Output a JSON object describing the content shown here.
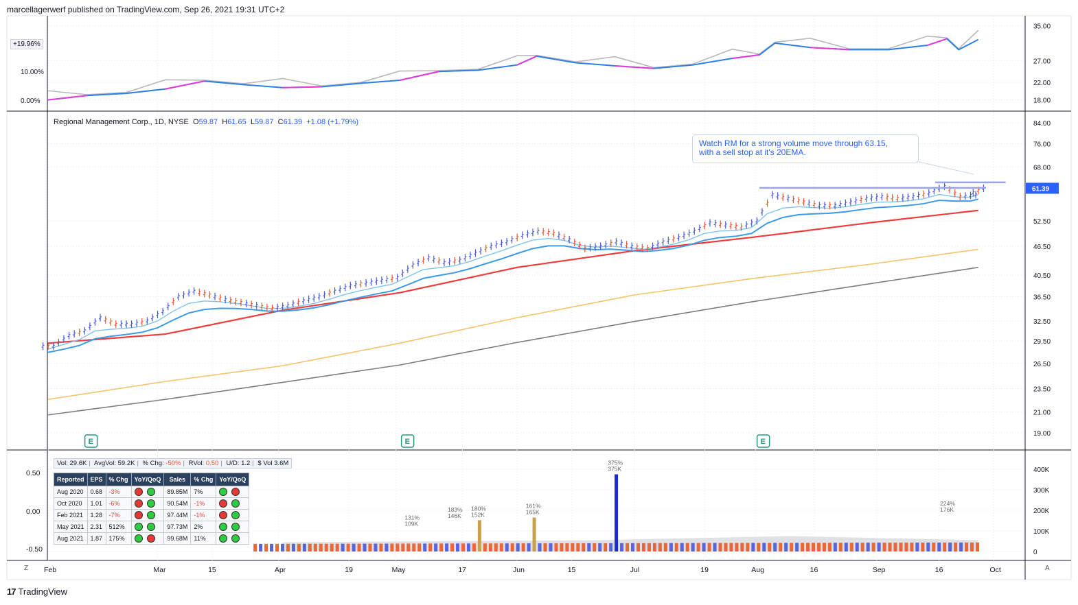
{
  "header": "marcellagerwerf published on TradingView.com, Sep 26, 2021 19:31 UTC+2",
  "footer": {
    "logo_mark": "17",
    "logo_text": "TradingView"
  },
  "buttons": {
    "z": "Z",
    "a": "A"
  },
  "symbol_legend": {
    "name": "Regional Management Corp., 1D, NYSE",
    "o_label": "O",
    "o": "59.87",
    "h_label": "H",
    "h": "61.65",
    "l_label": "L",
    "l": "59.87",
    "c_label": "C",
    "c": "61.39",
    "change": "+1.08 (+1.79%)"
  },
  "annotation": {
    "line1": "Watch RM for a strong volume move through 63.15,",
    "line2": "with a sell stop at it's 20EMA."
  },
  "colors": {
    "up": "#4a5bd8",
    "down": "#e8572f",
    "ema_fast": "#7ec3f0",
    "ema_mid": "#3b9be8",
    "ma50": "#ef3b3b",
    "ma150": "#f5c26b",
    "ma200": "#7d7d7d",
    "rs_line": "#2b7fe6",
    "rs_mag": "#e63bd8",
    "rs_gray": "#b8b8b8",
    "vol_highlight": "#c8a050",
    "vol_up": "#5b64d8",
    "vol_down": "#e8683a",
    "vol_big": "#1f28d6"
  },
  "rs_panel": {
    "badge": "+19.96%",
    "ticks": [
      "10.00%",
      "0.00%"
    ]
  },
  "vol_stats": {
    "vol_label": "Vol:",
    "vol": "29.6K",
    "avg_label": "AvgVol:",
    "avg": "59.2K",
    "chg_label": "% Chg:",
    "chg": "-50%",
    "rvol_label": "RVol:",
    "rvol": "0.50",
    "ud_label": "U/D:",
    "ud": "1.2",
    "dvol_label": "$ Vol",
    "dvol": "3.6M"
  },
  "eps_table": {
    "headers": [
      "Reported",
      "EPS",
      "% Chg",
      "YoY/QoQ",
      "Sales",
      "% Chg",
      "YoY/QoQ"
    ],
    "rows": [
      {
        "reported": "Aug 2020",
        "eps": "0.68",
        "eps_chg": "-3%",
        "eps_dots": [
          "red",
          "green"
        ],
        "sales": "89.85M",
        "sales_chg": "7%",
        "sales_dots": [
          "green",
          "red"
        ]
      },
      {
        "reported": "Oct 2020",
        "eps": "1.01",
        "eps_chg": "-6%",
        "eps_dots": [
          "red",
          "green"
        ],
        "sales": "90.54M",
        "sales_chg": "-1%",
        "sales_dots": [
          "red",
          "green"
        ]
      },
      {
        "reported": "Feb 2021",
        "eps": "1.28",
        "eps_chg": "-7%",
        "eps_dots": [
          "red",
          "green"
        ],
        "sales": "97.44M",
        "sales_chg": "-1%",
        "sales_dots": [
          "red",
          "green"
        ]
      },
      {
        "reported": "May 2021",
        "eps": "2.31",
        "eps_chg": "512%",
        "eps_dots": [
          "green",
          "green"
        ],
        "sales": "97.73M",
        "sales_chg": "2%",
        "sales_dots": [
          "green",
          "green"
        ]
      },
      {
        "reported": "Aug 2021",
        "eps": "1.87",
        "eps_chg": "175%",
        "eps_dots": [
          "green",
          "red"
        ],
        "sales": "99.68M",
        "sales_chg": "11%",
        "sales_dots": [
          "green",
          "green"
        ]
      }
    ]
  },
  "chart_data": {
    "type": "line",
    "x_ticks": [
      "Feb",
      "Mar",
      "15",
      "Apr",
      "19",
      "May",
      "17",
      "Jun",
      "15",
      "Jul",
      "19",
      "Aug",
      "16",
      "Sep",
      "16",
      "Oct"
    ],
    "x_tick_days": [
      0,
      28,
      42,
      59,
      77,
      89,
      106,
      120,
      134,
      150,
      168,
      181,
      196,
      212,
      228,
      242
    ],
    "price_axis": {
      "scale": "log",
      "ticks": [
        84.0,
        76.0,
        68.0,
        61.39,
        52.5,
        46.5,
        40.5,
        36.5,
        32.5,
        29.5,
        26.5,
        23.5,
        21.0,
        19.0
      ],
      "tick_labels": [
        "84.00",
        "76.00",
        "68.00",
        "61.39",
        "52.50",
        "46.50",
        "40.50",
        "36.50",
        "32.50",
        "29.50",
        "26.50",
        "23.50",
        "21.00",
        "19.00"
      ],
      "current_price": "61.39"
    },
    "rs_axis": {
      "ticks": [
        35.0,
        27.0,
        22.0,
        18.0
      ],
      "tick_labels": [
        "35.00",
        "27.00",
        "22.00",
        "18.00"
      ]
    },
    "volume_axis": {
      "ticks": [
        400000,
        300000,
        200000,
        100000,
        0
      ],
      "tick_labels": [
        "400K",
        "300K",
        "200K",
        "100K",
        "0"
      ]
    },
    "osc_axis": {
      "ticks": [
        0.5,
        0.0,
        -0.5
      ],
      "tick_labels": [
        "0.50",
        "0.00",
        "-0.50"
      ]
    },
    "earnings_marker": "E",
    "earnings_days": [
      11,
      92,
      183
    ],
    "price_series": [
      {
        "d": 0,
        "c": 28.8
      },
      {
        "d": 4,
        "c": 30.3
      },
      {
        "d": 8,
        "c": 31.0
      },
      {
        "d": 12,
        "c": 33.0
      },
      {
        "d": 16,
        "c": 32.0
      },
      {
        "d": 20,
        "c": 32.0
      },
      {
        "d": 24,
        "c": 32.5
      },
      {
        "d": 28,
        "c": 34.0
      },
      {
        "d": 32,
        "c": 36.5
      },
      {
        "d": 36,
        "c": 37.5
      },
      {
        "d": 40,
        "c": 36.8
      },
      {
        "d": 44,
        "c": 36.0
      },
      {
        "d": 48,
        "c": 35.5
      },
      {
        "d": 52,
        "c": 35.0
      },
      {
        "d": 56,
        "c": 34.5
      },
      {
        "d": 60,
        "c": 35.0
      },
      {
        "d": 64,
        "c": 35.8
      },
      {
        "d": 68,
        "c": 36.5
      },
      {
        "d": 72,
        "c": 37.5
      },
      {
        "d": 76,
        "c": 38.5
      },
      {
        "d": 80,
        "c": 39.0
      },
      {
        "d": 84,
        "c": 39.5
      },
      {
        "d": 88,
        "c": 40.0
      },
      {
        "d": 92,
        "c": 42.5
      },
      {
        "d": 96,
        "c": 44.0
      },
      {
        "d": 100,
        "c": 43.0
      },
      {
        "d": 104,
        "c": 43.5
      },
      {
        "d": 108,
        "c": 45.0
      },
      {
        "d": 112,
        "c": 46.5
      },
      {
        "d": 116,
        "c": 47.5
      },
      {
        "d": 120,
        "c": 49.0
      },
      {
        "d": 124,
        "c": 50.0
      },
      {
        "d": 128,
        "c": 49.5
      },
      {
        "d": 132,
        "c": 48.0
      },
      {
        "d": 136,
        "c": 46.0
      },
      {
        "d": 140,
        "c": 46.5
      },
      {
        "d": 144,
        "c": 47.5
      },
      {
        "d": 148,
        "c": 46.5
      },
      {
        "d": 152,
        "c": 46.0
      },
      {
        "d": 156,
        "c": 47.5
      },
      {
        "d": 160,
        "c": 48.5
      },
      {
        "d": 164,
        "c": 50.0
      },
      {
        "d": 168,
        "c": 52.0
      },
      {
        "d": 172,
        "c": 51.5
      },
      {
        "d": 176,
        "c": 51.0
      },
      {
        "d": 180,
        "c": 52.5
      },
      {
        "d": 184,
        "c": 59.5
      },
      {
        "d": 188,
        "c": 58.5
      },
      {
        "d": 192,
        "c": 57.5
      },
      {
        "d": 196,
        "c": 56.5
      },
      {
        "d": 200,
        "c": 56.5
      },
      {
        "d": 204,
        "c": 57.5
      },
      {
        "d": 208,
        "c": 58.5
      },
      {
        "d": 212,
        "c": 59.0
      },
      {
        "d": 216,
        "c": 58.5
      },
      {
        "d": 220,
        "c": 59.0
      },
      {
        "d": 224,
        "c": 60.0
      },
      {
        "d": 228,
        "c": 62.0
      },
      {
        "d": 232,
        "c": 59.0
      },
      {
        "d": 236,
        "c": 59.5
      },
      {
        "d": 238,
        "c": 61.39
      }
    ],
    "ma_series": [
      {
        "name": "",
        "values": [
          {
            "d": 0,
            "v": 29.2
          },
          {
            "d": 30,
            "v": 30.5
          },
          {
            "d": 60,
            "v": 34.2
          },
          {
            "d": 90,
            "v": 37.2
          },
          {
            "d": 120,
            "v": 42.0
          },
          {
            "d": 150,
            "v": 45.5
          },
          {
            "d": 180,
            "v": 48.5
          },
          {
            "d": 210,
            "v": 52.0
          },
          {
            "d": 238,
            "v": 55.2
          }
        ]
      },
      {
        "name": "",
        "values": [
          {
            "d": 0,
            "v": 22.3
          },
          {
            "d": 30,
            "v": 24.3
          },
          {
            "d": 60,
            "v": 26.2
          },
          {
            "d": 90,
            "v": 29.2
          },
          {
            "d": 120,
            "v": 33.0
          },
          {
            "d": 150,
            "v": 36.8
          },
          {
            "d": 180,
            "v": 39.8
          },
          {
            "d": 210,
            "v": 42.6
          },
          {
            "d": 238,
            "v": 45.8
          }
        ]
      },
      {
        "name": "",
        "values": [
          {
            "d": 0,
            "v": 20.7
          },
          {
            "d": 30,
            "v": 22.3
          },
          {
            "d": 60,
            "v": 24.2
          },
          {
            "d": 90,
            "v": 26.3
          },
          {
            "d": 120,
            "v": 29.3
          },
          {
            "d": 150,
            "v": 32.4
          },
          {
            "d": 180,
            "v": 35.6
          },
          {
            "d": 210,
            "v": 38.8
          },
          {
            "d": 238,
            "v": 42.0
          }
        ]
      }
    ],
    "horizontal_levels": [
      61.5,
      63.15
    ],
    "rs_series": [
      {
        "d": 0,
        "v": 18.0
      },
      {
        "d": 10,
        "v": 19.0
      },
      {
        "d": 20,
        "v": 19.5
      },
      {
        "d": 30,
        "v": 20.5
      },
      {
        "d": 40,
        "v": 22.3
      },
      {
        "d": 50,
        "v": 21.5
      },
      {
        "d": 60,
        "v": 20.8
      },
      {
        "d": 70,
        "v": 21.0
      },
      {
        "d": 80,
        "v": 21.8
      },
      {
        "d": 90,
        "v": 22.5
      },
      {
        "d": 100,
        "v": 24.5
      },
      {
        "d": 110,
        "v": 24.8
      },
      {
        "d": 120,
        "v": 26.0
      },
      {
        "d": 125,
        "v": 28.0
      },
      {
        "d": 135,
        "v": 26.5
      },
      {
        "d": 145,
        "v": 25.8
      },
      {
        "d": 155,
        "v": 25.2
      },
      {
        "d": 165,
        "v": 26.0
      },
      {
        "d": 175,
        "v": 27.5
      },
      {
        "d": 182,
        "v": 28.3
      },
      {
        "d": 186,
        "v": 31.0
      },
      {
        "d": 195,
        "v": 30.0
      },
      {
        "d": 205,
        "v": 29.5
      },
      {
        "d": 215,
        "v": 29.5
      },
      {
        "d": 225,
        "v": 30.5
      },
      {
        "d": 230,
        "v": 32.0
      },
      {
        "d": 233,
        "v": 29.5
      },
      {
        "d": 238,
        "v": 31.8
      }
    ],
    "volume_labels": [
      {
        "d": 93,
        "pct": "131%",
        "vol": "109K",
        "v": 109000
      },
      {
        "d": 104,
        "pct": "183%",
        "vol": "146K",
        "v": 146000
      },
      {
        "d": 110,
        "pct": "180%",
        "vol": "152K",
        "v": 152000
      },
      {
        "d": 124,
        "pct": "161%",
        "vol": "165K",
        "v": 165000
      },
      {
        "d": 145,
        "pct": "375%",
        "vol": "375K",
        "v": 375000
      },
      {
        "d": 230,
        "pct": "224%",
        "vol": "176K",
        "v": 176000
      }
    ]
  }
}
